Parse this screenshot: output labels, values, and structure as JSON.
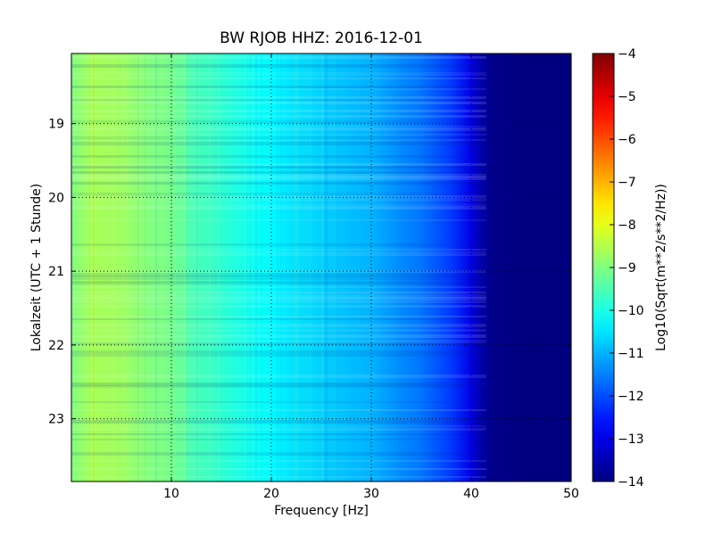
{
  "chart_data": {
    "type": "heatmap",
    "title": "BW RJOB HHZ: 2016-12-01",
    "xlabel": "Frequency [Hz]",
    "ylabel": "Lokalzeit (UTC + 1 Stunde)",
    "xlim": [
      0,
      50
    ],
    "ylim": [
      18.05,
      23.85
    ],
    "x_ticks": [
      10,
      20,
      30,
      40,
      50
    ],
    "y_ticks": [
      19,
      20,
      21,
      22,
      23
    ],
    "grid": true,
    "colormap": "jet",
    "colorbar": {
      "label": "Log10(Sqrt(m**2/s**2/Hz))",
      "range": [
        -14,
        -4
      ],
      "ticks": [
        -4,
        -5,
        -6,
        -7,
        -8,
        -9,
        -10,
        -11,
        -12,
        -13,
        -14
      ]
    },
    "spectrum_profile": {
      "frequency_hz": [
        0,
        2,
        5,
        8,
        10,
        12,
        15,
        18,
        20,
        22,
        25,
        28,
        30,
        33,
        35,
        38,
        40,
        41,
        42,
        45,
        50
      ],
      "level": [
        -9.0,
        -8.6,
        -8.7,
        -9.0,
        -9.1,
        -9.5,
        -9.8,
        -10.1,
        -10.3,
        -10.5,
        -10.7,
        -10.9,
        -11.0,
        -11.4,
        -11.6,
        -12.2,
        -13.0,
        -13.6,
        -13.9,
        -14.0,
        -14.0
      ]
    }
  }
}
